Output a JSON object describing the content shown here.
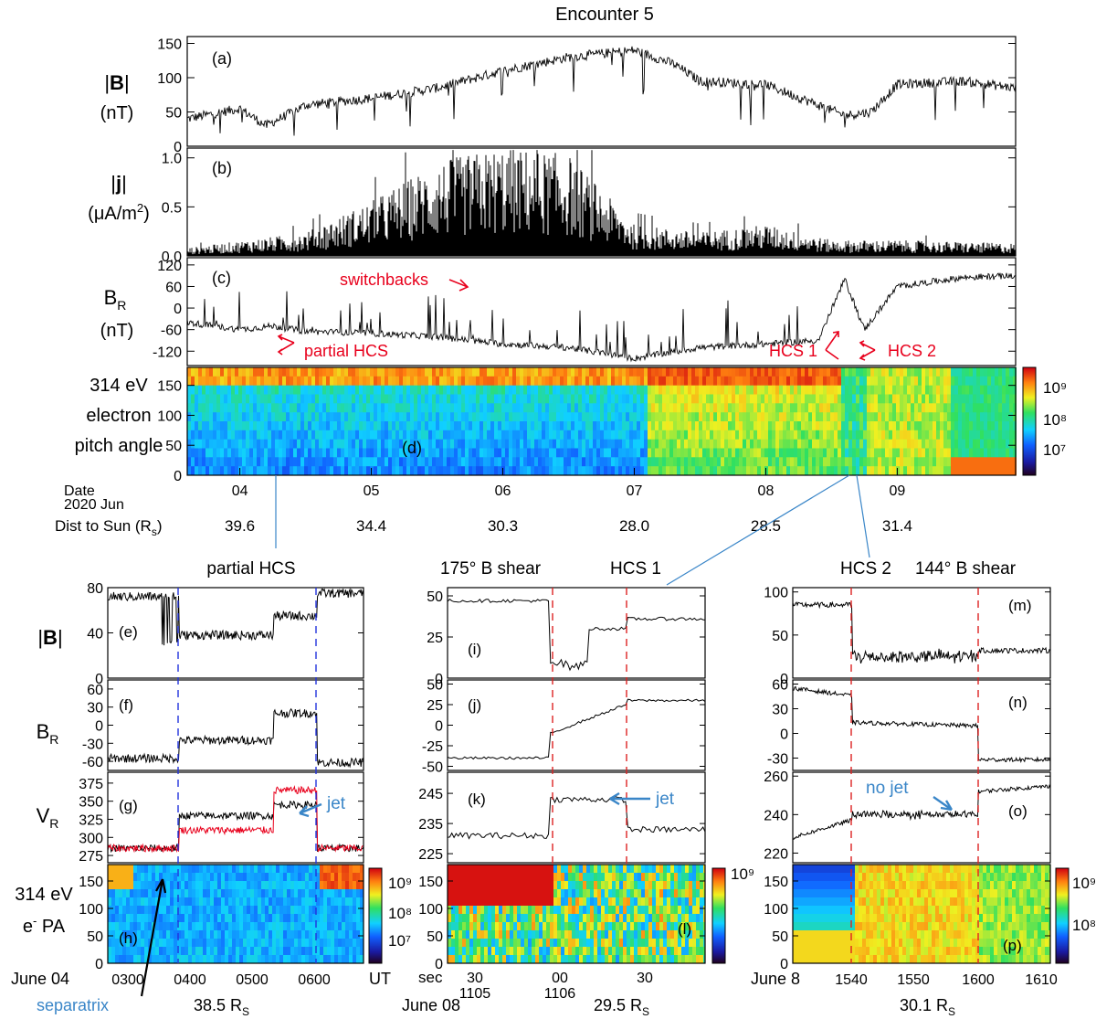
{
  "title": "Encounter 5",
  "colors": {
    "trace": "#000000",
    "annot_red": "#e8001c",
    "annot_blue": "#3a86c8",
    "dash_blue": "#2233dd",
    "dash_red": "#dd2222",
    "frame": "#000000"
  },
  "top": {
    "panels": [
      {
        "id": "a",
        "label_html": "|B|",
        "label_bold": "B",
        "unit": "(nT)",
        "letter": "(a)",
        "ylim": [
          0,
          160
        ],
        "ticks": [
          "0",
          "50",
          "100",
          "150"
        ],
        "tick_values": [
          0,
          50,
          100,
          150
        ]
      },
      {
        "id": "b",
        "label_bold": "j",
        "unit": "(μA/m²)",
        "unit_base": "(μA/m",
        "unit_sup": "2",
        "unit_close": ")",
        "letter": "(b)",
        "ylim": [
          0,
          1.1
        ],
        "ticks": [
          "0.0",
          "0.5",
          "1.0"
        ],
        "tick_values": [
          0,
          0.5,
          1.0
        ]
      },
      {
        "id": "c",
        "label_base": "B",
        "label_sub": "R",
        "unit": "(nT)",
        "letter": "(c)",
        "ylim": [
          -160,
          140
        ],
        "ticks": [
          "-120",
          "-60",
          "0",
          "60",
          "120"
        ],
        "tick_values": [
          -120,
          -60,
          0,
          60,
          120
        ]
      },
      {
        "id": "d",
        "label_lines": [
          "314 eV",
          "electron",
          "pitch angle"
        ],
        "letter": "(d)",
        "ylim": [
          0,
          180
        ],
        "ticks": [
          "0",
          "50",
          "100",
          "150"
        ],
        "tick_values": [
          0,
          50,
          100,
          150
        ]
      }
    ],
    "colorbar": {
      "ticks": [
        "10⁹",
        "10⁸",
        "10⁷"
      ]
    },
    "annotations": {
      "switchbacks": "switchbacks",
      "partial_hcs": "partial HCS",
      "hcs1": "HCS 1",
      "hcs2": "HCS 2"
    },
    "axis": {
      "date_label": "Date",
      "year_label": "2020 Jun",
      "dist_label": "Dist to Sun (R",
      "dist_sub": "s",
      "dist_close": ")",
      "dates": [
        "04",
        "05",
        "06",
        "07",
        "08",
        "09"
      ],
      "distances": [
        "39.6",
        "34.4",
        "30.3",
        "28.0",
        "28.5",
        "31.4"
      ]
    }
  },
  "bottom_left": {
    "title": "partial HCS",
    "letters": [
      "(e)",
      "(f)",
      "(g)",
      "(h)"
    ],
    "labels": {
      "b": "|B|",
      "br": "B",
      "br_sub": "R",
      "vr": "V",
      "vr_sub": "R",
      "pa1": "314 eV",
      "pa2_base": "e",
      "pa2_sup": "-",
      "pa2_rest": " PA"
    },
    "b_ticks": [
      "0",
      "40",
      "80"
    ],
    "br_ticks": [
      "-60",
      "-30",
      "0",
      "30",
      "60"
    ],
    "vr_ticks": [
      "275",
      "300",
      "325",
      "350",
      "375"
    ],
    "pa_ticks": [
      "0",
      "50",
      "100",
      "150"
    ],
    "x_ticks": [
      "0300",
      "0400",
      "0500",
      "0600"
    ],
    "date": "June 04",
    "ut": "UT",
    "dist": "38.5 R",
    "dist_sub": "S",
    "jet": "jet",
    "separatrix": "separatrix",
    "colorbar_ticks": [
      "10⁹",
      "10⁸",
      "10⁷"
    ]
  },
  "bottom_mid": {
    "title_left": "175° B shear",
    "title_right": "HCS 1",
    "letters": [
      "(i)",
      "(j)",
      "(k)",
      "(l)"
    ],
    "b_ticks": [
      "0",
      "25",
      "50"
    ],
    "br_ticks": [
      "-50",
      "-25",
      "0",
      "25",
      "50"
    ],
    "vr_ticks": [
      "225",
      "235",
      "245"
    ],
    "pa_ticks": [
      "0",
      "50",
      "100",
      "150"
    ],
    "x_ticks": [
      "30",
      "00",
      "30"
    ],
    "x_ticks2": [
      "1105",
      "1106"
    ],
    "sec": "sec",
    "date": "June 08",
    "dist": "29.5 R",
    "dist_sub": "S",
    "jet": "jet",
    "colorbar_ticks": [
      "10⁹"
    ]
  },
  "bottom_right": {
    "title_left": "HCS 2",
    "title_right": "144° B shear",
    "letters": [
      "(m)",
      "(n)",
      "(o)",
      "(p)"
    ],
    "b_ticks": [
      "0",
      "50",
      "100"
    ],
    "br_ticks": [
      "-30",
      "0",
      "30",
      "60"
    ],
    "vr_ticks": [
      "220",
      "240",
      "260"
    ],
    "pa_ticks": [
      "0",
      "50",
      "100",
      "150"
    ],
    "x_ticks": [
      "1540",
      "1550",
      "1600",
      "1610"
    ],
    "date": "June 8",
    "dist": "30.1 R",
    "dist_sub": "S",
    "no_jet": "no jet",
    "colorbar_ticks": [
      "10⁹",
      "10⁸"
    ]
  },
  "chart_data": {
    "type": "line",
    "title": "Encounter 5",
    "series": [
      {
        "name": "|B| (nT)",
        "x_days": [
          3.6,
          4.0,
          4.2,
          4.5,
          5.0,
          5.5,
          6.0,
          6.5,
          7.0,
          7.3,
          7.5,
          8.0,
          8.4,
          8.6,
          8.8,
          9.0,
          9.5,
          9.9
        ],
        "values": [
          40,
          55,
          30,
          60,
          70,
          85,
          110,
          130,
          140,
          120,
          95,
          90,
          60,
          45,
          50,
          90,
          95,
          85
        ]
      },
      {
        "name": "|j| (μA/m²)",
        "x_days": [
          3.6,
          4.5,
          5.0,
          5.5,
          6.0,
          6.5,
          7.0,
          7.5,
          8.0,
          8.5,
          9.0,
          9.9
        ],
        "values": [
          0.05,
          0.15,
          0.35,
          0.6,
          0.7,
          0.65,
          0.2,
          0.15,
          0.2,
          0.1,
          0.1,
          0.08
        ]
      },
      {
        "name": "B_R (nT)",
        "x_days": [
          3.6,
          4.0,
          4.25,
          4.5,
          5.0,
          5.5,
          6.0,
          6.5,
          7.0,
          7.5,
          8.0,
          8.4,
          8.6,
          8.75,
          9.0,
          9.5,
          9.9
        ],
        "values": [
          -40,
          -60,
          -50,
          -65,
          -70,
          -80,
          -100,
          -110,
          -140,
          -110,
          -100,
          -90,
          80,
          -60,
          60,
          85,
          90
        ]
      }
    ],
    "xlabel": "Date 2020 Jun",
    "x_ticks": [
      "04",
      "05",
      "06",
      "07",
      "08",
      "09"
    ],
    "ylim_B": [
      0,
      160
    ],
    "ylim_j": [
      0,
      1.1
    ],
    "ylim_BR": [
      -160,
      140
    ],
    "ylim_PA": [
      0,
      180
    ]
  }
}
